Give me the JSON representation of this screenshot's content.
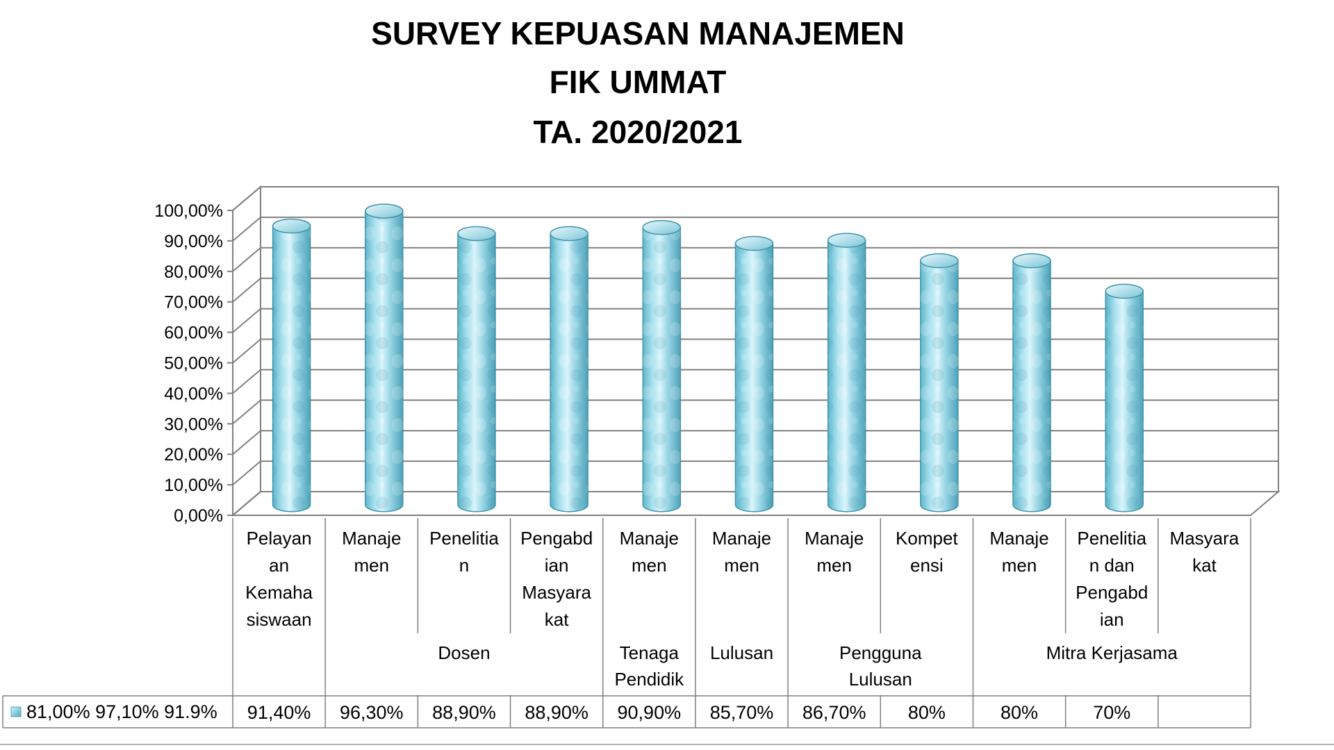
{
  "chart_data": {
    "type": "bar",
    "title": [
      "SURVEY KEPUASAN MANAJEMEN",
      "FIK UMMAT",
      "TA. 2020/2021"
    ],
    "categories": [
      [
        "Pelayan",
        "an",
        "Kemaha",
        "siswaan"
      ],
      [
        "Manaje",
        "men"
      ],
      [
        "Penelitia",
        "n"
      ],
      [
        "Pengabd",
        "ian",
        "Masyara",
        "kat"
      ],
      [
        "Manaje",
        "men"
      ],
      [
        "Manaje",
        "men"
      ],
      [
        "Manaje",
        "men"
      ],
      [
        "Kompet",
        "ensi"
      ],
      [
        "Manaje",
        "men"
      ],
      [
        "Penelitia",
        "n dan",
        "Pengabd",
        "ian"
      ],
      [
        "Masyara",
        "kat"
      ]
    ],
    "groups": [
      {
        "label": [
          "Dosen"
        ],
        "span": [
          1,
          3
        ]
      },
      {
        "label": [
          "Tenaga",
          "Pendidik"
        ],
        "span": [
          4,
          4
        ]
      },
      {
        "label": [
          "Lulusan"
        ],
        "span": [
          5,
          5
        ]
      },
      {
        "label": [
          "Pengguna",
          "Lulusan"
        ],
        "span": [
          6,
          7
        ]
      },
      {
        "label": [
          "Mitra Kerjasama"
        ],
        "span": [
          8,
          10
        ]
      }
    ],
    "series": [
      {
        "name": "81,00% 97,10% 91.9%",
        "values": [
          91.4,
          96.3,
          88.9,
          88.9,
          90.9,
          85.7,
          86.7,
          80,
          80,
          70,
          null
        ],
        "labels": [
          "91,40%",
          "96,30%",
          "88,90%",
          "88,90%",
          "90,90%",
          "85,70%",
          "86,70%",
          "80%",
          "80%",
          "70%",
          ""
        ]
      }
    ],
    "ylim": [
      0,
      100
    ],
    "yticks": [
      "0,00%",
      "10,00%",
      "20,00%",
      "30,00%",
      "40,00%",
      "50,00%",
      "60,00%",
      "70,00%",
      "80,00%",
      "90,00%",
      "100,00%"
    ],
    "grid": true,
    "legend": "data-table-left",
    "colors": {
      "bar": "#8fd3e3",
      "bar_dark": "#4fa9bf",
      "bar_light": "#d6f2f8",
      "grid": "#808080"
    }
  }
}
